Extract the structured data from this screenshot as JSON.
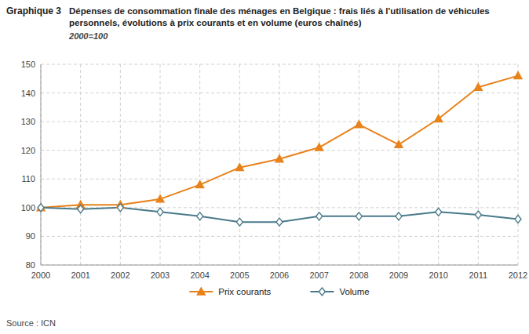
{
  "chart_data": {
    "type": "line",
    "title": "Dépenses de consommation finale des ménages en Belgique : frais liés à l'utilisation de véhicules\npersonnels, évolutions à prix courants et en volume (euros chaînés)",
    "subtitle": "2000=100",
    "annotations": [
      "Graphique 3",
      "Source : ICN"
    ],
    "x": [
      2000,
      2001,
      2002,
      2003,
      2004,
      2005,
      2006,
      2007,
      2008,
      2009,
      2010,
      2011,
      2012
    ],
    "series": [
      {
        "name": "Prix courants",
        "color": "#E8821A",
        "marker": "triangle",
        "values": [
          100,
          101,
          101,
          103,
          108,
          114,
          117,
          121,
          129,
          122,
          131,
          142,
          146
        ]
      },
      {
        "name": "Volume",
        "color": "#4A7A8A",
        "marker": "diamond",
        "values": [
          100,
          99.5,
          100,
          98.5,
          97,
          95,
          95,
          97,
          97,
          97,
          98.5,
          97.5,
          96
        ]
      }
    ],
    "xlim": [
      2000,
      2012
    ],
    "xticks": [
      2000,
      2001,
      2002,
      2003,
      2004,
      2005,
      2006,
      2007,
      2008,
      2009,
      2010,
      2011,
      2012
    ],
    "ylim": [
      80,
      150
    ],
    "yticks": [
      80,
      90,
      100,
      110,
      120,
      130,
      140,
      150
    ],
    "grid": true,
    "legend": "bottom"
  }
}
